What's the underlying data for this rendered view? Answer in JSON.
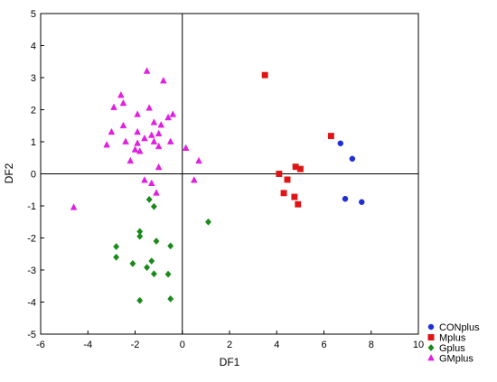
{
  "chart_data": {
    "type": "scatter",
    "xlabel": "DF1",
    "ylabel": "DF2",
    "xlim": [
      -6,
      10
    ],
    "ylim": [
      -5,
      5
    ],
    "x_ticks": [
      -6,
      -4,
      -2,
      0,
      2,
      4,
      6,
      8,
      10
    ],
    "y_ticks": [
      -5,
      -4,
      -3,
      -2,
      -1,
      0,
      1,
      2,
      3,
      4,
      5
    ],
    "grid": false,
    "zero_lines": true,
    "legend_position": "bottom-right",
    "series": [
      {
        "name": "CONplus",
        "marker": "circle",
        "color": "#1f2fd6",
        "points": [
          [
            6.7,
            0.95
          ],
          [
            7.2,
            0.47
          ],
          [
            6.9,
            -0.78
          ],
          [
            7.6,
            -0.88
          ]
        ]
      },
      {
        "name": "Mplus",
        "marker": "square",
        "color": "#e01414",
        "points": [
          [
            3.5,
            3.08
          ],
          [
            6.3,
            1.18
          ],
          [
            4.8,
            0.22
          ],
          [
            5.0,
            0.15
          ],
          [
            4.1,
            0.0
          ],
          [
            4.45,
            -0.18
          ],
          [
            4.3,
            -0.6
          ],
          [
            4.75,
            -0.72
          ],
          [
            4.9,
            -0.95
          ]
        ]
      },
      {
        "name": "Gplus",
        "marker": "diamond",
        "color": "#1a8a1a",
        "points": [
          [
            -1.4,
            -0.8
          ],
          [
            -1.2,
            -1.02
          ],
          [
            1.1,
            -1.5
          ],
          [
            -1.8,
            -1.8
          ],
          [
            -1.8,
            -1.95
          ],
          [
            -1.1,
            -2.1
          ],
          [
            -0.5,
            -2.25
          ],
          [
            -2.8,
            -2.27
          ],
          [
            -2.8,
            -2.6
          ],
          [
            -2.1,
            -2.8
          ],
          [
            -1.3,
            -2.72
          ],
          [
            -1.5,
            -2.92
          ],
          [
            -1.2,
            -3.12
          ],
          [
            -0.6,
            -3.13
          ],
          [
            -1.8,
            -3.95
          ],
          [
            -0.5,
            -3.9
          ]
        ]
      },
      {
        "name": "GMplus",
        "marker": "triangle",
        "color": "#e020e0",
        "points": [
          [
            -1.5,
            3.2
          ],
          [
            -0.8,
            2.9
          ],
          [
            -2.6,
            2.45
          ],
          [
            -2.5,
            2.2
          ],
          [
            -2.9,
            2.07
          ],
          [
            -1.4,
            2.05
          ],
          [
            -1.9,
            1.85
          ],
          [
            -0.4,
            1.85
          ],
          [
            -0.6,
            1.75
          ],
          [
            -1.2,
            1.6
          ],
          [
            -0.9,
            1.52
          ],
          [
            -2.5,
            1.5
          ],
          [
            -3.0,
            1.3
          ],
          [
            -1.9,
            1.3
          ],
          [
            -1.3,
            1.2
          ],
          [
            -1.0,
            1.25
          ],
          [
            -1.6,
            1.1
          ],
          [
            -1.2,
            1.0
          ],
          [
            -2.4,
            1.0
          ],
          [
            -1.9,
            0.95
          ],
          [
            -0.5,
            1.0
          ],
          [
            -3.2,
            0.9
          ],
          [
            -1.0,
            0.85
          ],
          [
            -2.0,
            0.75
          ],
          [
            -1.8,
            0.7
          ],
          [
            0.15,
            0.8
          ],
          [
            -2.2,
            0.4
          ],
          [
            -1.0,
            0.2
          ],
          [
            0.7,
            0.4
          ],
          [
            -1.3,
            -0.3
          ],
          [
            -1.6,
            -0.2
          ],
          [
            -1.1,
            -0.6
          ],
          [
            0.5,
            -0.2
          ],
          [
            -4.6,
            -1.05
          ]
        ]
      }
    ]
  }
}
